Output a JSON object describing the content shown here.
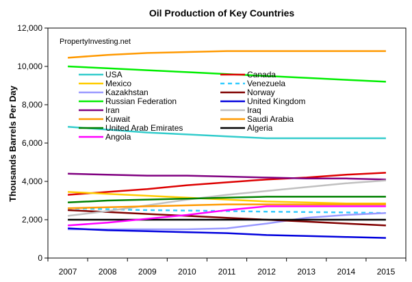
{
  "chart_data": {
    "type": "line",
    "title": "Oil Production of Key Countries",
    "ylabel": "Thousands Barrels Per Day",
    "xlabel": "",
    "annotation": "PropertyInvesting.net",
    "x": [
      "2007",
      "2008",
      "2009",
      "2010",
      "2011",
      "2012",
      "2013",
      "2014",
      "2015"
    ],
    "ylim": [
      0,
      12000
    ],
    "yticks": [
      "0",
      "2,000",
      "4,000",
      "6,000",
      "8,000",
      "10,000",
      "12,000"
    ],
    "ytick_values": [
      0,
      2000,
      4000,
      6000,
      8000,
      10000,
      12000
    ],
    "grid": false,
    "legend_position": "inside-top",
    "series": [
      {
        "name": "USA",
        "color": "#33cccc",
        "dash": false,
        "values": [
          6850,
          6700,
          6550,
          6450,
          6350,
          6250,
          6250,
          6250,
          6250
        ]
      },
      {
        "name": "Canada",
        "color": "#dd0000",
        "dash": false,
        "values": [
          3300,
          3450,
          3600,
          3800,
          3950,
          4100,
          4200,
          4350,
          4450
        ]
      },
      {
        "name": "Mexico",
        "color": "#ffcc00",
        "dash": false,
        "values": [
          3450,
          3350,
          3250,
          3150,
          3050,
          2950,
          2900,
          2850,
          2850
        ]
      },
      {
        "name": "Venezuela",
        "color": "#33ccff",
        "dash": true,
        "values": [
          2600,
          2550,
          2500,
          2480,
          2450,
          2420,
          2400,
          2380,
          2350
        ]
      },
      {
        "name": "Kazakhstan",
        "color": "#9999ff",
        "dash": false,
        "values": [
          1500,
          1500,
          1500,
          1500,
          1550,
          1800,
          2100,
          2250,
          2350
        ]
      },
      {
        "name": "Norway",
        "color": "#800000",
        "dash": false,
        "values": [
          2500,
          2400,
          2300,
          2200,
          2100,
          2000,
          1900,
          1800,
          1700
        ]
      },
      {
        "name": "Russian Federation",
        "color": "#00ee00",
        "dash": false,
        "values": [
          10000,
          9900,
          9800,
          9700,
          9600,
          9500,
          9400,
          9300,
          9200
        ]
      },
      {
        "name": "United Kingdom",
        "color": "#0000dd",
        "dash": false,
        "values": [
          1550,
          1450,
          1400,
          1350,
          1300,
          1200,
          1150,
          1100,
          1050
        ]
      },
      {
        "name": "Iran",
        "color": "#800080",
        "dash": false,
        "values": [
          4400,
          4350,
          4300,
          4300,
          4250,
          4200,
          4150,
          4150,
          4100
        ]
      },
      {
        "name": "Iraq",
        "color": "#c0c0c0",
        "dash": false,
        "values": [
          2200,
          2450,
          2750,
          3050,
          3300,
          3500,
          3700,
          3900,
          4050
        ]
      },
      {
        "name": "Kuwait",
        "color": "#ff9900",
        "dash": false,
        "values": [
          2600,
          2650,
          2700,
          2750,
          2800,
          2800,
          2800,
          2800,
          2800
        ]
      },
      {
        "name": "Saudi Arabia",
        "color": "#ff9900",
        "dash": false,
        "values": [
          10450,
          10600,
          10700,
          10750,
          10800,
          10800,
          10800,
          10800,
          10800
        ]
      },
      {
        "name": "United Arab Emirates",
        "color": "#008000",
        "dash": false,
        "values": [
          2900,
          3000,
          3050,
          3100,
          3150,
          3200,
          3200,
          3200,
          3200
        ]
      },
      {
        "name": "Algeria",
        "color": "#000000",
        "dash": false,
        "values": [
          2000,
          2000,
          2000,
          2000,
          2000,
          2000,
          2000,
          2000,
          2000
        ]
      },
      {
        "name": "Angola",
        "color": "#ff00ff",
        "dash": false,
        "values": [
          1700,
          1850,
          2050,
          2250,
          2500,
          2700,
          2700,
          2700,
          2700
        ]
      }
    ]
  }
}
